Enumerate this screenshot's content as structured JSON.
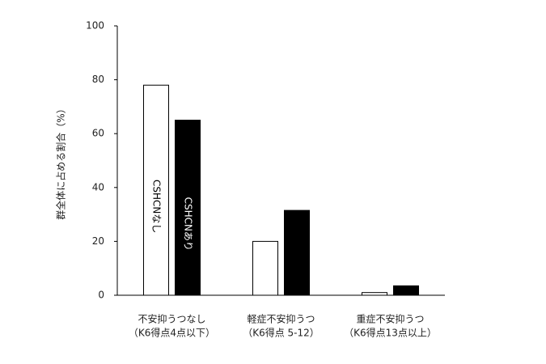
{
  "chart_data": {
    "type": "bar",
    "y_label": "群全体に占める割合（%）",
    "categories": [
      [
        "不安抑うつなし",
        "（K6得点4点以下）"
      ],
      [
        "軽症不安抑うつ",
        "（K6得点 5-12）"
      ],
      [
        "重症不安抑うつ",
        "（K6得点13点以上）"
      ]
    ],
    "series": [
      {
        "name": "CSHCNなし",
        "color": "#ffffff",
        "values": [
          78,
          20,
          1
        ]
      },
      {
        "name": "CSHCNあり",
        "color": "#000000",
        "values": [
          65,
          31.5,
          3.5
        ]
      }
    ],
    "ylim": [
      0,
      100
    ],
    "yticks": [
      0,
      20,
      40,
      60,
      80,
      100
    ],
    "grid": false
  }
}
